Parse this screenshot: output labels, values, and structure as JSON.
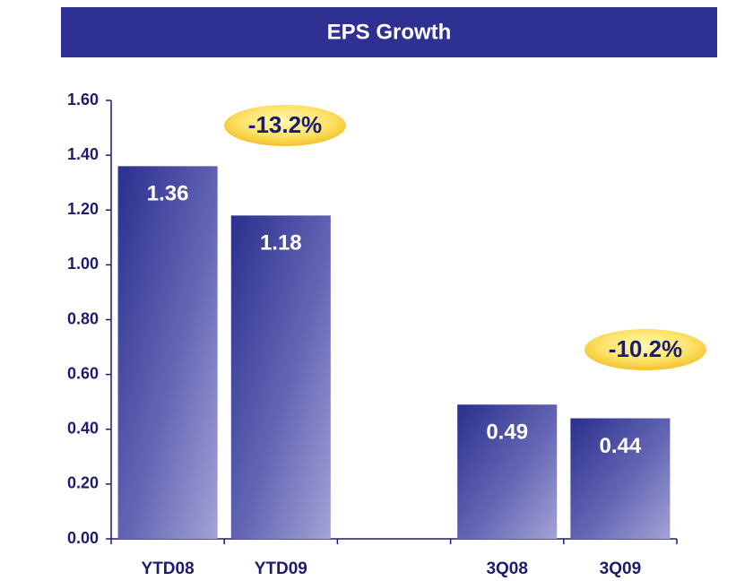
{
  "chart_data": {
    "type": "bar",
    "title": "EPS Growth",
    "categories": [
      "YTD08",
      "YTD09",
      null,
      "3Q08",
      "3Q09"
    ],
    "values": [
      1.36,
      1.18,
      null,
      0.49,
      0.44
    ],
    "color": "#2e3192",
    "ylim": [
      0,
      1.6
    ],
    "yticks": [
      {
        "value": 0,
        "label": "0.00"
      },
      {
        "value": 0.2,
        "label": "0.20"
      },
      {
        "value": 0.4,
        "label": "0.40"
      },
      {
        "value": 0.6,
        "label": "0.60"
      },
      {
        "value": 0.8,
        "label": "0.80"
      },
      {
        "value": 1.0,
        "label": "1.00"
      },
      {
        "value": 1.2,
        "label": "1.20"
      },
      {
        "value": 1.4,
        "label": "1.40"
      },
      {
        "value": 1.6,
        "label": "1.60"
      }
    ],
    "annotations": [
      "-13.2%",
      "-10.2%"
    ]
  }
}
